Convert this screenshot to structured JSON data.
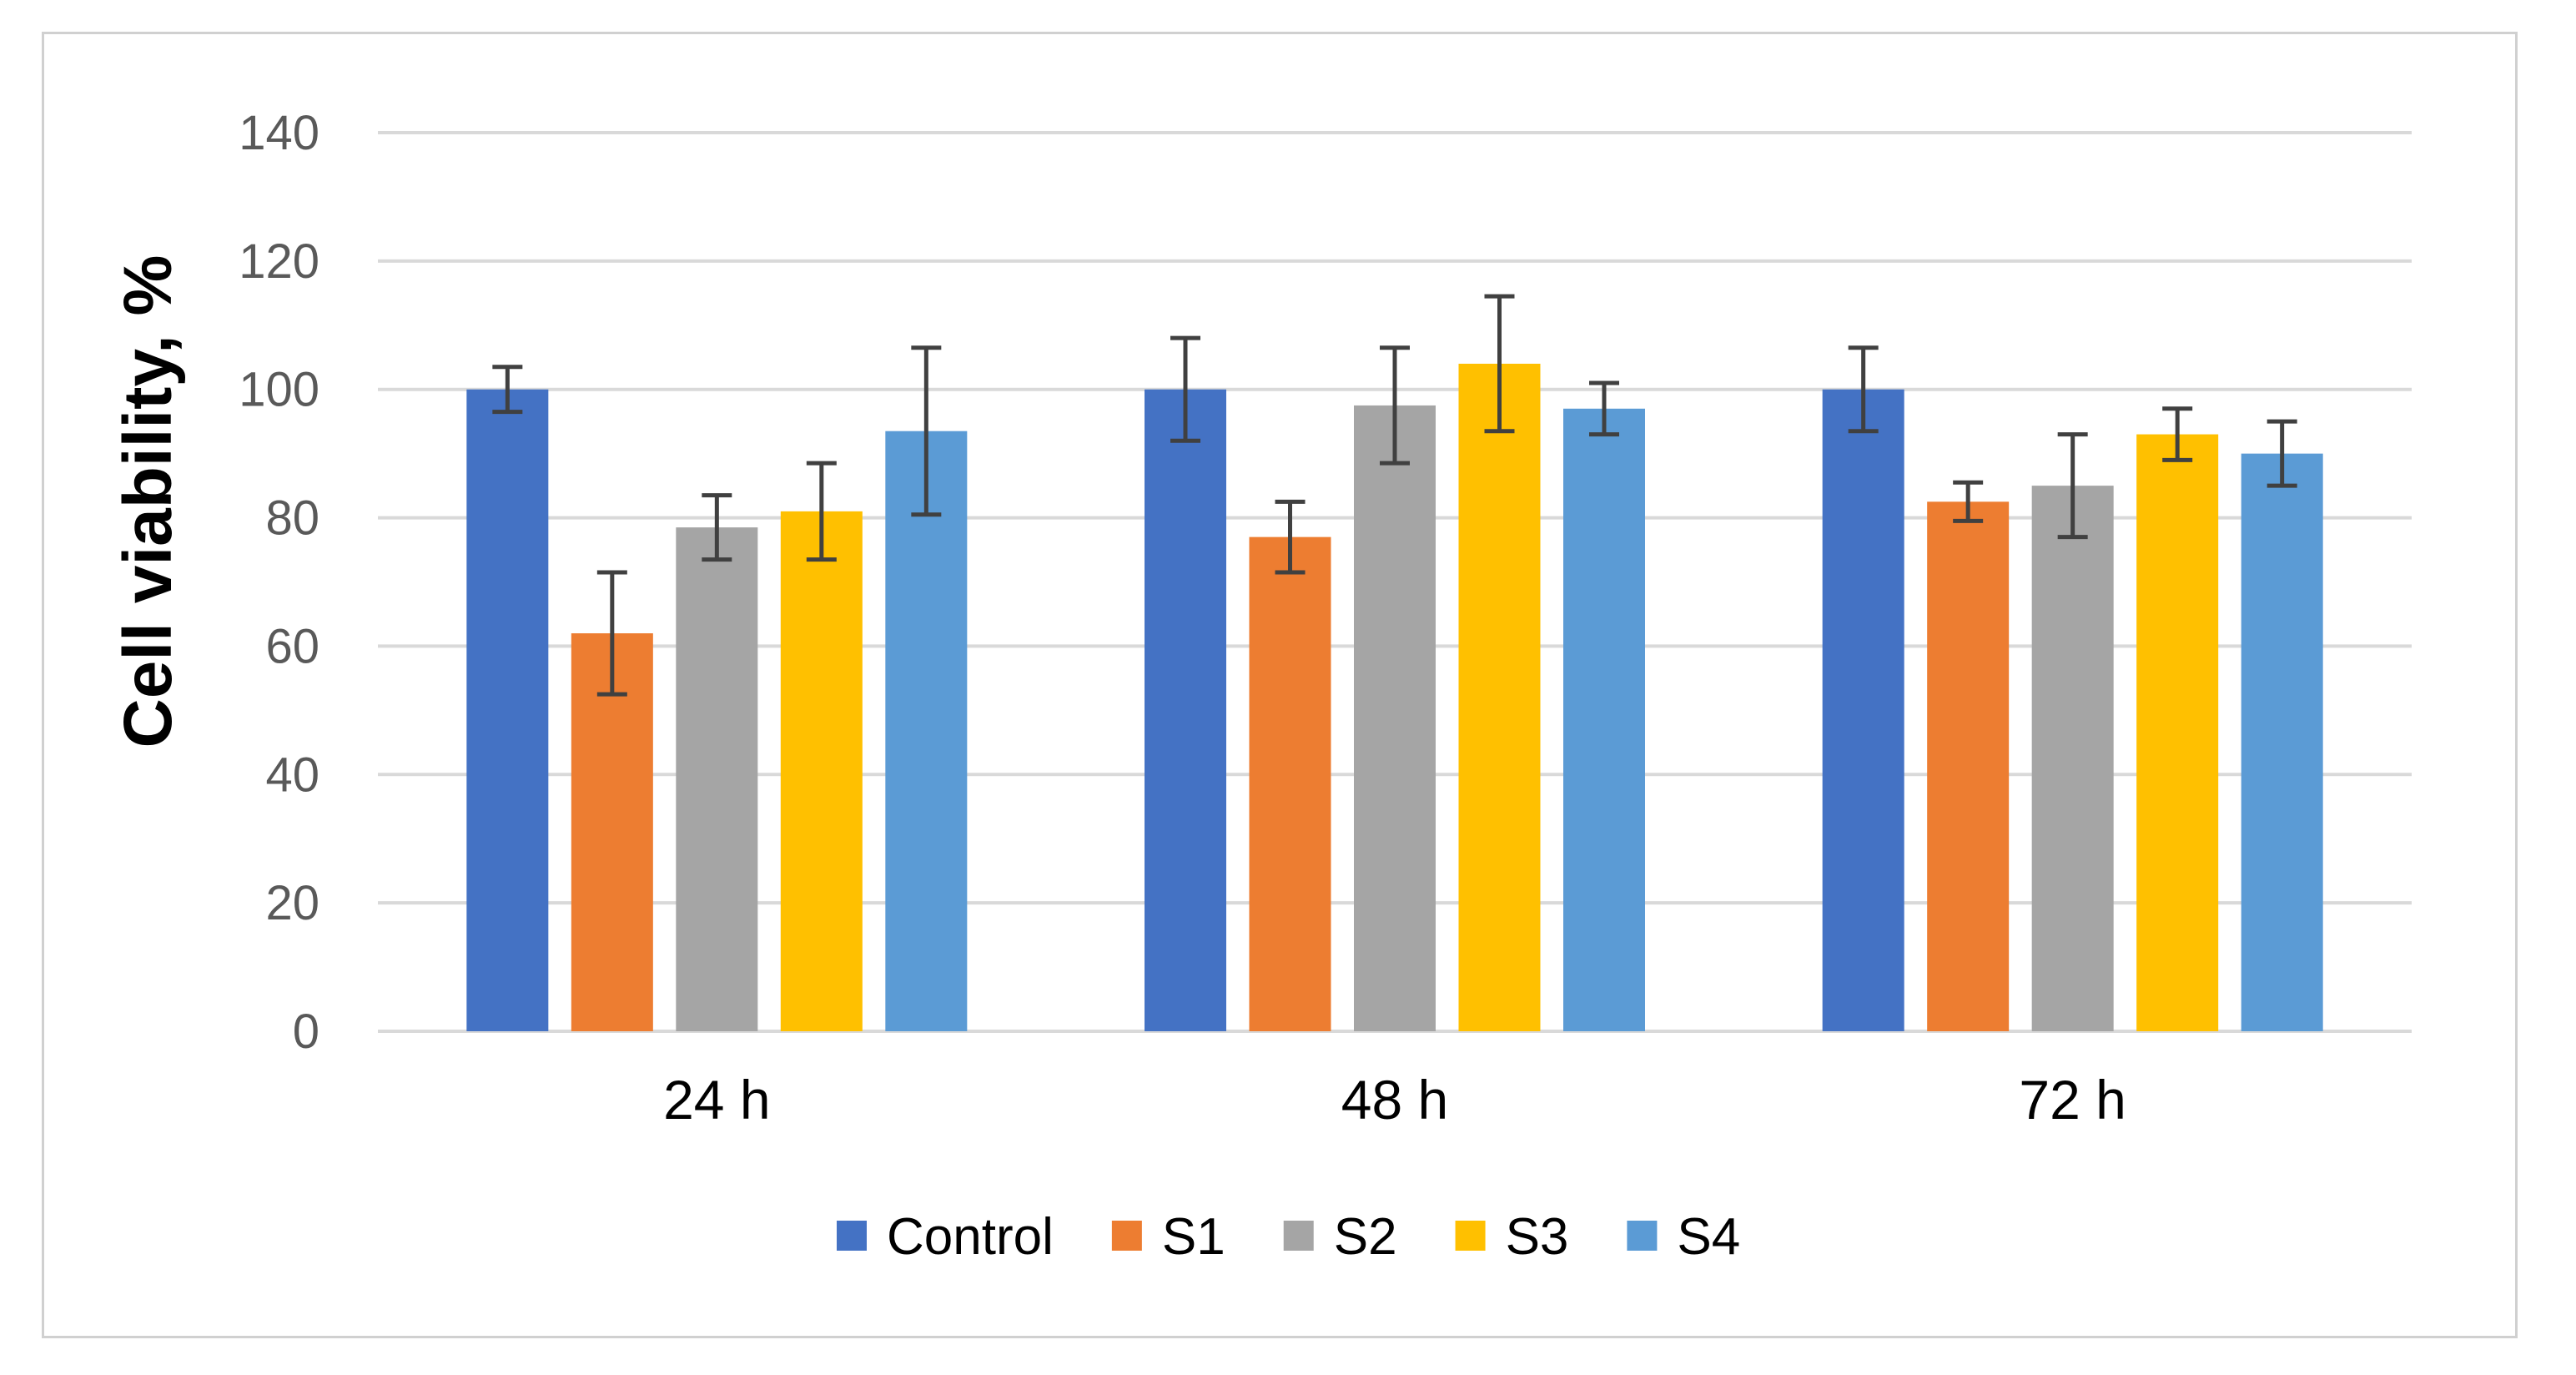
{
  "chart_data": {
    "type": "bar",
    "title": "",
    "xlabel": "",
    "ylabel": "Cell viability, %",
    "ylim": [
      0,
      140
    ],
    "yticks": [
      0,
      20,
      40,
      60,
      80,
      100,
      120,
      140
    ],
    "grid": true,
    "legend_position": "bottom",
    "categories": [
      "24 h",
      "48 h",
      "72 h"
    ],
    "series": [
      {
        "name": "Control",
        "color": "#4472C4",
        "values": [
          100,
          100,
          100
        ],
        "errors": [
          3.5,
          8,
          6.5
        ]
      },
      {
        "name": "S1",
        "color": "#ED7D31",
        "values": [
          62,
          77,
          82.5
        ],
        "errors": [
          9.5,
          5.5,
          3
        ]
      },
      {
        "name": "S2",
        "color": "#A5A5A5",
        "values": [
          78.5,
          97.5,
          85
        ],
        "errors": [
          5,
          9,
          8
        ]
      },
      {
        "name": "S3",
        "color": "#FFC000",
        "values": [
          81,
          104,
          93
        ],
        "errors": [
          7.5,
          10.5,
          4
        ]
      },
      {
        "name": "S4",
        "color": "#5B9BD5",
        "values": [
          93.5,
          97,
          90
        ],
        "errors": [
          13,
          4,
          5
        ]
      }
    ],
    "gridline_color": "#d9d9d9",
    "errorbar_color": "#404040"
  }
}
